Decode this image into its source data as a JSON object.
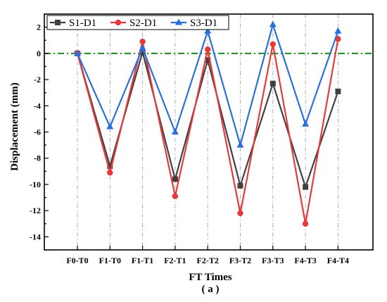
{
  "chart_data": {
    "type": "line",
    "xlabel": "FT Times",
    "sublabel": "( a )",
    "ylabel": "Displacement (mm)",
    "categories": [
      "F0-T0",
      "F1-T0",
      "F1-T1",
      "F2-T1",
      "F2-T2",
      "F3-T2",
      "F3-T3",
      "F4-T3",
      "F4-T4"
    ],
    "ylim": [
      -15,
      3
    ],
    "yticks": [
      2,
      0,
      -2,
      -4,
      -6,
      -8,
      -10,
      -12,
      -14
    ],
    "reference_line": {
      "y": 0,
      "color": "#1a8a1a",
      "style": "dash-dot"
    },
    "vertical_gridlines": "dash-dot at each category",
    "legend_position": "top-left",
    "series": [
      {
        "name": "S1-D1",
        "color": "#404040",
        "marker": "square",
        "values": [
          0,
          -8.6,
          0.1,
          -9.6,
          -0.5,
          -10.1,
          -2.3,
          -10.2,
          -2.9
        ]
      },
      {
        "name": "S2-D1",
        "color": "#e8393a",
        "marker": "circle",
        "values": [
          0,
          -9.1,
          0.9,
          -10.9,
          0.3,
          -12.2,
          0.7,
          -13.0,
          1.1
        ]
      },
      {
        "name": "S3-D1",
        "color": "#2a6fdb",
        "marker": "triangle",
        "values": [
          0,
          -5.6,
          0.4,
          -6.0,
          1.7,
          -7.0,
          2.2,
          -5.4,
          1.7
        ]
      }
    ]
  }
}
